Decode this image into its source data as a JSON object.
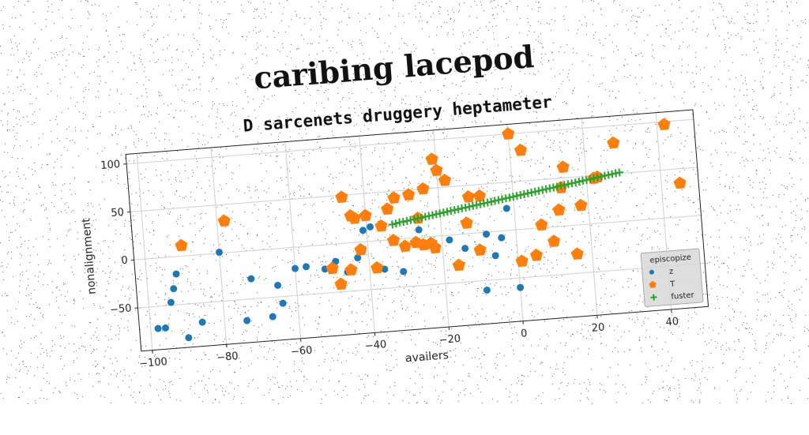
{
  "title": "caribing lacepod",
  "chart_data": {
    "type": "scatter",
    "title": "D sarcenets druggery heptameter",
    "xlabel": "availers",
    "ylabel": "nonalignment",
    "xlim": [
      -103,
      50
    ],
    "ylim": [
      -95,
      110
    ],
    "xticks": [
      -100,
      -80,
      -60,
      -40,
      -20,
      0,
      20,
      40
    ],
    "yticks": [
      -50,
      0,
      50,
      100
    ],
    "grid": true,
    "legend": {
      "title": "episcopize",
      "placement": "bottom-right"
    },
    "series": [
      {
        "name": "z",
        "marker": "circle",
        "color": "#1f77b4",
        "x": [
          -98,
          -96,
          -94,
          -93,
          -92,
          -90,
          -86,
          -80,
          -74,
          -72,
          -67,
          -65,
          -64,
          -60,
          -57,
          -52,
          -49,
          -46,
          -43,
          -41,
          -39,
          -36,
          -31,
          -26,
          -18,
          -14,
          -9,
          -8,
          -6,
          -4,
          -2,
          0
        ],
        "y": [
          -73,
          -73,
          -47,
          -33,
          -18,
          -85,
          -70,
          1,
          -72,
          -29,
          -70,
          -38,
          -57,
          -22,
          -21,
          -25,
          -18,
          -30,
          -16,
          12,
          15,
          -30,
          -34,
          8,
          -5,
          -15,
          -60,
          -2,
          -25,
          -7,
          23,
          -60
        ]
      },
      {
        "name": "T",
        "marker": "pentagon",
        "color": "#ff7f0e",
        "x": [
          -90,
          -78,
          -50,
          -48,
          -46,
          -45,
          -44,
          -43,
          -42,
          -40,
          -38,
          -36,
          -34,
          -33,
          -32,
          -30,
          -28,
          -27,
          -26,
          -25,
          -24,
          -23,
          -22,
          -21,
          -20,
          -18,
          -16,
          -13,
          -12,
          -10,
          -9,
          0,
          1,
          3,
          5,
          7,
          10,
          12,
          13,
          14,
          16,
          18,
          22,
          23,
          28,
          42,
          45
        ],
        "y": [
          11,
          33,
          -25,
          -42,
          48,
          -28,
          28,
          25,
          -8,
          27,
          -28,
          15,
          32,
          -1,
          43,
          -8,
          45,
          -5,
          20,
          -8,
          50,
          -7,
          -12,
          80,
          68,
          57,
          -32,
          11,
          38,
          -18,
          38,
          100,
          -33,
          82,
          -28,
          3,
          -15,
          17,
          40,
          61,
          -30,
          20,
          47,
          48,
          82,
          97,
          35
        ]
      },
      {
        "name": "fuster",
        "marker": "plus",
        "color": "#2ca02c",
        "x": [
          -33,
          -32,
          -31,
          -30,
          -29,
          -28,
          -27,
          -26,
          -25,
          -24,
          -23,
          -22,
          -21,
          -20,
          -19,
          -18,
          -17,
          -16,
          -15,
          -14,
          -13,
          -12,
          -11,
          -10,
          -9,
          -8,
          -7,
          -6,
          -5,
          -4,
          -3,
          -2,
          -1,
          0,
          1,
          2,
          3,
          4,
          5,
          6,
          7,
          8,
          9,
          10,
          11,
          12,
          13,
          14,
          15,
          16,
          17,
          18,
          19,
          20,
          21,
          22,
          23,
          24,
          25,
          26,
          27,
          28,
          29
        ],
        "y": [
          15.7,
          16.3,
          17.2,
          17.5,
          18.1,
          18.8,
          19.2,
          19.9,
          20.3,
          21.0,
          21.6,
          22.0,
          22.7,
          23.2,
          23.9,
          24.4,
          25.0,
          25.5,
          26.1,
          26.7,
          27.2,
          27.8,
          28.4,
          28.9,
          29.5,
          30.1,
          30.6,
          31.2,
          31.8,
          32.3,
          32.9,
          33.5,
          34.0,
          34.6,
          35.2,
          35.7,
          36.3,
          36.9,
          37.4,
          38.0,
          38.6,
          39.1,
          39.7,
          40.3,
          40.8,
          41.4,
          42.0,
          42.5,
          43.1,
          43.7,
          44.2,
          44.8,
          45.4,
          45.9,
          46.5,
          47.1,
          47.6,
          48.2,
          48.8,
          49.3,
          49.9,
          50.5,
          51.0
        ]
      }
    ]
  }
}
